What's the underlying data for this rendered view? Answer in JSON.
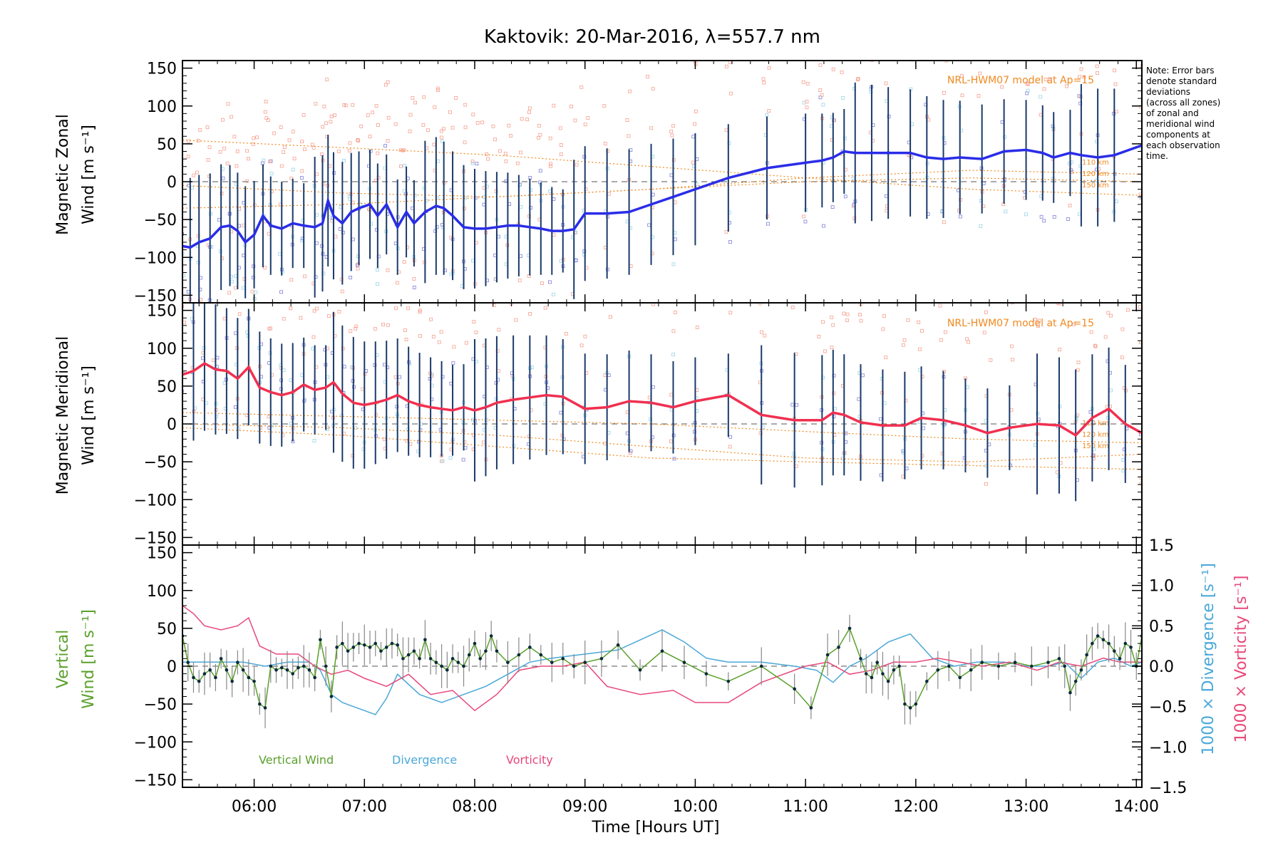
{
  "title": "Kaktovik: 20-Mar-2016, λ=557.7 nm",
  "note_lines": [
    "Note: Error bars",
    "denote standard",
    "deviations",
    "(across all zones)",
    "of zonal and",
    "meridional wind",
    "components at",
    "each observation",
    "time."
  ],
  "x_axis": {
    "label": "Time [Hours UT]",
    "range_hours": [
      5.35,
      14.05
    ],
    "ticks": [
      {
        "value": 6,
        "label": "06:00"
      },
      {
        "value": 7,
        "label": "07:00"
      },
      {
        "value": 8,
        "label": "08:00"
      },
      {
        "value": 9,
        "label": "09:00"
      },
      {
        "value": 10,
        "label": "10:00"
      },
      {
        "value": 11,
        "label": "11:00"
      },
      {
        "value": 12,
        "label": "12:00"
      },
      {
        "value": 13,
        "label": "13:00"
      },
      {
        "value": 14,
        "label": "14:00"
      }
    ]
  },
  "y_ticks": {
    "values": [
      150,
      100,
      50,
      0,
      -50,
      -100,
      -150
    ],
    "labels": [
      "150",
      "100",
      "50",
      "0",
      "−50",
      "−100",
      "−150"
    ]
  },
  "colors": {
    "zonal": "#2a2de8",
    "meridional": "#f03050",
    "vertical": "#5aa02c",
    "divergence": "#4aa8d8",
    "vorticity": "#e8487a",
    "model": "#f08a20",
    "errorbar": "#1a3a6a",
    "salmon": "#f4a090"
  },
  "panels": [
    {
      "id": "zonal",
      "ylabel_line1": "Magnetic Zonal",
      "ylabel_line2": "Wind [m s⁻¹]",
      "model_label": "NRL-HWM07 model at Ap=15",
      "model_alt_labels": [
        "110 km",
        "120 km",
        "150 km"
      ]
    },
    {
      "id": "meridional",
      "ylabel_line1": "Magnetic Meridional",
      "ylabel_line2": "Wind [m s⁻¹]",
      "model_label": "NRL-HWM07 model at Ap=15",
      "model_alt_labels": [
        "110 km",
        "120 km",
        "150 km"
      ]
    },
    {
      "id": "vertical",
      "ylabel_line1": "Vertical",
      "ylabel_line2": "Wind [m s⁻¹]",
      "right_axis_label_1": "1000 × Divergence [s⁻¹]",
      "right_axis_label_2": "1000 × Vorticity [s⁻¹]",
      "right_ticks": [
        "1.5",
        "1.0",
        "0.5",
        "0.0",
        "−0.5",
        "−1.0",
        "−1.5"
      ],
      "legend": [
        "Vertical Wind",
        "Divergence",
        "Vorticity"
      ]
    }
  ],
  "chart_data": {
    "type": "line",
    "title": "Kaktovik: 20-Mar-2016, λ=557.7 nm",
    "xlabel": "Time [Hours UT]",
    "x_unit": "hours UT",
    "xlim": [
      5.35,
      14.05
    ],
    "series": [
      {
        "name": "Magnetic Zonal Wind",
        "panel": "zonal",
        "ylim": [
          -160,
          160
        ],
        "x": [
          5.35,
          5.42,
          5.5,
          5.6,
          5.7,
          5.78,
          5.85,
          5.92,
          6.0,
          6.08,
          6.15,
          6.25,
          6.35,
          6.45,
          6.55,
          6.62,
          6.67,
          6.72,
          6.8,
          6.88,
          6.95,
          7.05,
          7.12,
          7.2,
          7.3,
          7.38,
          7.45,
          7.55,
          7.65,
          7.72,
          7.8,
          7.9,
          8.0,
          8.1,
          8.2,
          8.3,
          8.4,
          8.5,
          8.6,
          8.7,
          8.8,
          8.9,
          9.0,
          9.2,
          9.4,
          9.6,
          9.8,
          10.0,
          10.3,
          10.65,
          11.0,
          11.15,
          11.25,
          11.35,
          11.45,
          11.6,
          11.75,
          11.95,
          12.1,
          12.25,
          12.4,
          12.6,
          12.8,
          13.0,
          13.15,
          13.25,
          13.4,
          13.5,
          13.65,
          13.8,
          14.05
        ],
        "values": [
          -85,
          -87,
          -80,
          -75,
          -60,
          -58,
          -65,
          -80,
          -70,
          -45,
          -58,
          -62,
          -55,
          -58,
          -60,
          -55,
          -25,
          -45,
          -55,
          -40,
          -35,
          -30,
          -45,
          -30,
          -60,
          -40,
          -55,
          -40,
          -32,
          -35,
          -45,
          -60,
          -62,
          -62,
          -60,
          -58,
          -58,
          -60,
          -62,
          -65,
          -65,
          -63,
          -42,
          -42,
          -40,
          -30,
          -20,
          -10,
          5,
          18,
          25,
          28,
          32,
          40,
          38,
          38,
          38,
          38,
          32,
          30,
          32,
          30,
          40,
          42,
          38,
          32,
          38,
          35,
          32,
          35,
          48
        ]
      },
      {
        "name": "Magnetic Meridional Wind",
        "panel": "meridional",
        "ylim": [
          -160,
          160
        ],
        "x": [
          5.35,
          5.45,
          5.55,
          5.65,
          5.75,
          5.85,
          5.95,
          6.05,
          6.15,
          6.25,
          6.35,
          6.45,
          6.55,
          6.65,
          6.72,
          6.8,
          6.9,
          7.0,
          7.1,
          7.2,
          7.3,
          7.4,
          7.5,
          7.6,
          7.7,
          7.8,
          7.9,
          8.0,
          8.1,
          8.2,
          8.35,
          8.5,
          8.65,
          8.8,
          9.0,
          9.2,
          9.4,
          9.6,
          9.8,
          10.0,
          10.3,
          10.6,
          10.9,
          11.15,
          11.25,
          11.35,
          11.5,
          11.7,
          11.9,
          12.05,
          12.25,
          12.45,
          12.65,
          12.85,
          13.1,
          13.3,
          13.45,
          13.6,
          13.75,
          13.9,
          14.05
        ],
        "values": [
          65,
          70,
          80,
          72,
          70,
          60,
          75,
          48,
          42,
          38,
          42,
          52,
          45,
          48,
          55,
          40,
          28,
          25,
          28,
          32,
          38,
          30,
          25,
          22,
          20,
          18,
          22,
          18,
          22,
          28,
          32,
          35,
          38,
          36,
          20,
          22,
          30,
          28,
          22,
          30,
          38,
          12,
          5,
          5,
          15,
          12,
          2,
          -2,
          -2,
          8,
          5,
          -2,
          -12,
          -5,
          0,
          -2,
          -15,
          8,
          20,
          0,
          -12
        ]
      },
      {
        "name": "Vertical Wind",
        "panel": "vertical",
        "ylim": [
          -160,
          160
        ],
        "x": [
          5.35,
          5.4,
          5.45,
          5.5,
          5.55,
          5.6,
          5.65,
          5.7,
          5.75,
          5.8,
          5.85,
          5.9,
          5.95,
          6.0,
          6.05,
          6.1,
          6.15,
          6.2,
          6.25,
          6.3,
          6.35,
          6.4,
          6.45,
          6.5,
          6.55,
          6.6,
          6.65,
          6.7,
          6.75,
          6.8,
          6.85,
          6.9,
          6.95,
          7.0,
          7.05,
          7.1,
          7.15,
          7.2,
          7.25,
          7.3,
          7.35,
          7.4,
          7.45,
          7.5,
          7.55,
          7.6,
          7.65,
          7.7,
          7.75,
          7.8,
          7.85,
          7.9,
          7.95,
          8.0,
          8.05,
          8.1,
          8.15,
          8.2,
          8.3,
          8.4,
          8.5,
          8.6,
          8.7,
          8.8,
          8.9,
          9.0,
          9.15,
          9.3,
          9.5,
          9.7,
          9.9,
          10.1,
          10.3,
          10.6,
          10.9,
          11.05,
          11.2,
          11.3,
          11.4,
          11.5,
          11.55,
          11.6,
          11.65,
          11.7,
          11.75,
          11.8,
          11.85,
          11.9,
          11.95,
          12.0,
          12.1,
          12.2,
          12.3,
          12.4,
          12.5,
          12.6,
          12.75,
          12.9,
          13.05,
          13.2,
          13.3,
          13.35,
          13.4,
          13.45,
          13.5,
          13.55,
          13.6,
          13.65,
          13.7,
          13.75,
          13.8,
          13.85,
          13.9,
          13.95,
          14.0,
          14.05
        ],
        "values": [
          40,
          5,
          -15,
          -20,
          -10,
          -5,
          -15,
          10,
          -5,
          -20,
          5,
          -5,
          -15,
          -20,
          -50,
          -55,
          0,
          -5,
          -2,
          -5,
          -10,
          -2,
          0,
          -5,
          -15,
          35,
          0,
          -40,
          25,
          30,
          20,
          25,
          30,
          28,
          25,
          30,
          20,
          25,
          30,
          28,
          10,
          15,
          20,
          10,
          35,
          10,
          5,
          0,
          -5,
          10,
          5,
          0,
          15,
          30,
          10,
          20,
          40,
          20,
          5,
          15,
          25,
          15,
          5,
          10,
          0,
          5,
          10,
          28,
          -5,
          20,
          5,
          -10,
          -20,
          0,
          -30,
          -55,
          15,
          25,
          50,
          10,
          -10,
          -15,
          5,
          -10,
          -20,
          -5,
          0,
          -50,
          -55,
          -50,
          -20,
          -5,
          0,
          -15,
          -5,
          5,
          0,
          5,
          0,
          5,
          10,
          0,
          -35,
          -20,
          -5,
          15,
          30,
          40,
          35,
          30,
          20,
          10,
          30,
          25,
          0,
          40
        ]
      },
      {
        "name": "Divergence",
        "panel": "vertical",
        "axis": "right",
        "ylim": [
          -1.5,
          1.5
        ],
        "x": [
          5.35,
          5.5,
          5.7,
          5.9,
          6.1,
          6.3,
          6.5,
          6.6,
          6.7,
          6.8,
          6.9,
          7.0,
          7.1,
          7.2,
          7.3,
          7.5,
          7.7,
          7.9,
          8.1,
          8.3,
          8.5,
          8.7,
          9.0,
          9.3,
          9.7,
          9.9,
          10.1,
          10.3,
          10.6,
          10.9,
          11.1,
          11.25,
          11.4,
          11.55,
          11.75,
          11.95,
          12.15,
          12.35,
          12.55,
          12.8,
          13.0,
          13.2,
          13.35,
          13.5,
          13.65,
          13.8,
          13.95,
          14.05
        ],
        "values": [
          0.05,
          0.05,
          0.05,
          0.05,
          0.0,
          0.05,
          0.05,
          -0.05,
          -0.35,
          -0.45,
          -0.5,
          -0.55,
          -0.6,
          -0.4,
          -0.1,
          -0.35,
          -0.45,
          -0.35,
          -0.25,
          -0.1,
          0.05,
          0.1,
          0.15,
          0.2,
          0.45,
          0.3,
          0.1,
          0.05,
          0.05,
          0.0,
          -0.05,
          -0.2,
          0.0,
          0.1,
          0.3,
          0.4,
          0.1,
          0.0,
          0.05,
          0.05,
          0.0,
          0.0,
          0.05,
          -0.15,
          0.05,
          0.1,
          0.0,
          0.05
        ]
      },
      {
        "name": "Vorticity",
        "panel": "vertical",
        "axis": "right",
        "ylim": [
          -1.5,
          1.5
        ],
        "x": [
          5.35,
          5.45,
          5.55,
          5.7,
          5.85,
          5.95,
          6.05,
          6.2,
          6.4,
          6.55,
          6.7,
          6.85,
          7.0,
          7.2,
          7.4,
          7.6,
          7.8,
          8.0,
          8.2,
          8.4,
          8.6,
          8.8,
          9.0,
          9.2,
          9.5,
          9.8,
          10.0,
          10.3,
          10.6,
          11.0,
          11.2,
          11.4,
          11.6,
          11.8,
          12.0,
          12.2,
          12.4,
          12.6,
          12.85,
          13.1,
          13.3,
          13.5,
          13.7,
          13.85,
          14.05
        ],
        "values": [
          0.75,
          0.65,
          0.5,
          0.45,
          0.5,
          0.6,
          0.25,
          0.15,
          0.15,
          0.0,
          -0.1,
          -0.05,
          -0.15,
          -0.25,
          -0.1,
          -0.35,
          -0.3,
          -0.55,
          -0.35,
          -0.05,
          0.0,
          0.0,
          0.05,
          -0.25,
          -0.35,
          -0.3,
          -0.45,
          -0.45,
          -0.2,
          0.0,
          0.05,
          -0.1,
          -0.05,
          0.05,
          0.05,
          0.1,
          0.05,
          0.0,
          0.05,
          -0.05,
          0.05,
          0.0,
          0.1,
          0.05,
          0.05
        ]
      }
    ]
  }
}
